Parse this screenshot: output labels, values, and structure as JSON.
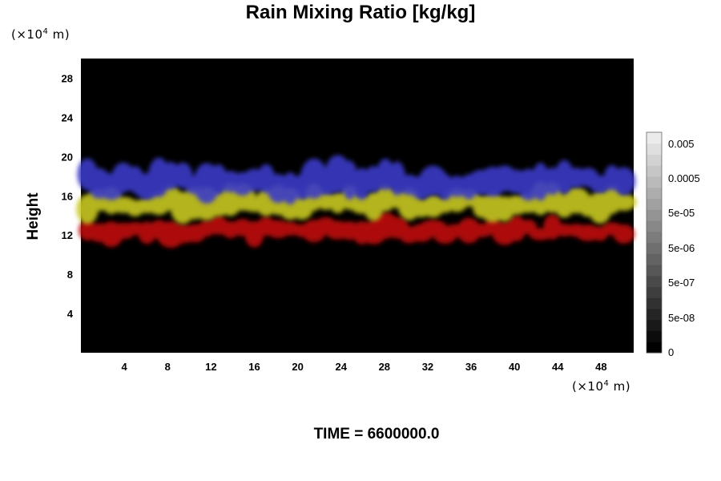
{
  "chart_data": {
    "type": "heatmap",
    "title": "Rain Mixing Ratio [kg/kg]",
    "ylabel": "Height",
    "xlabel": "",
    "y_unit": "(×10⁴ m)",
    "x_unit": "(×10⁴ m)",
    "x_ticks": [
      "4",
      "8",
      "12",
      "16",
      "20",
      "24",
      "28",
      "32",
      "36",
      "40",
      "44",
      "48"
    ],
    "y_ticks": [
      "4",
      "8",
      "12",
      "16",
      "20",
      "24",
      "28"
    ],
    "xlim": [
      0,
      51
    ],
    "ylim": [
      0,
      30
    ],
    "background": "#000000",
    "bands": [
      {
        "color": "#c01010",
        "x": [
          0,
          51
        ],
        "y": [
          11.5,
          13.5
        ]
      },
      {
        "color": "#c8c820",
        "x": [
          0,
          51
        ],
        "y": [
          14,
          16.5
        ]
      },
      {
        "color": "#3a3ac8",
        "x": [
          0,
          51
        ],
        "y": [
          16,
          19
        ]
      }
    ],
    "colorbar": {
      "labels": [
        "0.005",
        "0.0005",
        "5e-05",
        "5e-06",
        "5e-07",
        "5e-08",
        "0"
      ]
    }
  },
  "footer": "TIME = 6600000.0"
}
